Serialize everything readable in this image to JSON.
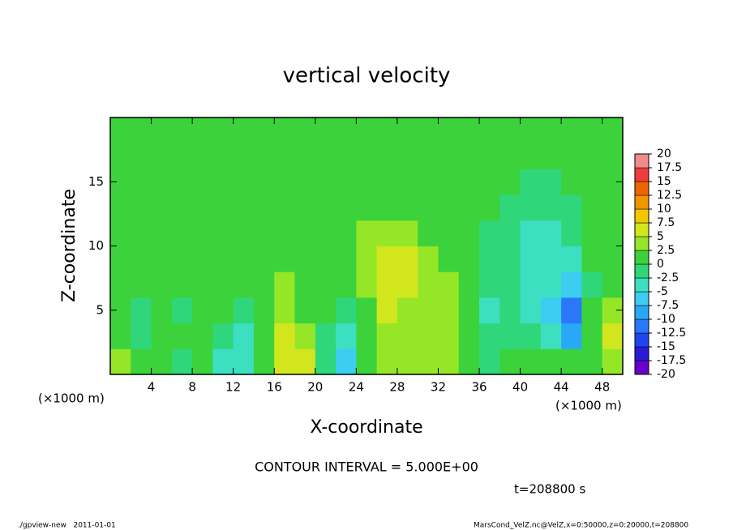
{
  "chart_data": {
    "type": "heatmap",
    "title": "vertical velocity",
    "xlabel": "X-coordinate",
    "ylabel": "Z-coordinate",
    "axis_unit": "(×1000 m)",
    "contour_note": "CONTOUR INTERVAL = 5.000E+00",
    "time_note": "t=208800 s",
    "footer_left": "./gpview-new   2011-01-01",
    "footer_right": "MarsCond_VelZ.nc@VelZ,x=0:50000,z=0:20000,t=208800",
    "xlim": [
      0,
      50
    ],
    "ylim": [
      0,
      20
    ],
    "xticks": [
      4,
      8,
      12,
      16,
      20,
      24,
      28,
      32,
      36,
      40,
      44,
      48
    ],
    "yticks": [
      5,
      10,
      15
    ],
    "x": [
      1,
      3,
      5,
      7,
      9,
      11,
      13,
      15,
      17,
      19,
      21,
      23,
      25,
      27,
      29,
      31,
      33,
      35,
      37,
      39,
      41,
      43,
      45,
      47,
      49
    ],
    "y": [
      1,
      3,
      5,
      7,
      9,
      11,
      13,
      15,
      17,
      19
    ],
    "values": [
      [
        2.5,
        0,
        0,
        -1,
        1,
        -3,
        -4,
        0,
        5,
        5,
        -2,
        -6,
        0,
        2.5,
        2.5,
        2.5,
        2.5,
        1,
        -1,
        0,
        0,
        0,
        0,
        1,
        2.5
      ],
      [
        1,
        -1,
        1,
        0,
        1,
        -2,
        -3,
        1,
        6,
        3,
        -2,
        -5,
        1,
        4,
        3,
        2.5,
        2.5,
        1,
        -2,
        -1,
        -2,
        -4,
        -8,
        1,
        5
      ],
      [
        0,
        -1,
        1.5,
        -1,
        1,
        0,
        -1,
        1,
        2.5,
        2,
        0,
        -1,
        2,
        5,
        4,
        3,
        2.5,
        0,
        -3,
        -2,
        -3,
        -6,
        -11,
        0,
        3
      ],
      [
        0,
        0,
        0,
        0,
        1,
        1,
        0,
        1,
        2.5,
        2,
        1,
        1,
        3,
        7,
        6,
        4,
        2.5,
        0,
        -2,
        -1,
        -3,
        -5,
        -7,
        -1,
        1
      ],
      [
        1,
        0,
        1,
        0,
        1,
        1,
        1,
        1,
        2,
        2,
        1,
        2,
        3,
        5,
        5,
        3,
        2,
        0,
        -1,
        -1,
        -3,
        -5,
        -4,
        0,
        1
      ],
      [
        1,
        1,
        1,
        0,
        1,
        1,
        1,
        1,
        1,
        1.5,
        2,
        2,
        2.5,
        3,
        3,
        2,
        2,
        0,
        -1,
        -1,
        -3,
        -4,
        -2,
        1,
        1
      ],
      [
        1,
        1,
        1,
        0,
        1,
        1,
        1,
        1,
        1,
        1,
        1.5,
        2,
        2,
        2,
        2,
        2,
        1.5,
        0,
        0,
        -1,
        -2,
        -2,
        -1,
        1,
        1
      ],
      [
        1,
        1,
        1,
        1,
        1,
        1,
        1,
        1,
        1,
        1,
        1,
        1,
        1.5,
        1.5,
        1.5,
        2,
        1.5,
        0,
        0,
        0,
        -1,
        -1,
        0,
        1,
        1
      ],
      [
        1,
        1,
        1,
        1,
        1,
        1,
        1,
        1,
        1,
        1,
        1,
        1,
        1,
        1.5,
        1.5,
        1.5,
        1,
        0,
        0,
        0,
        0,
        0,
        1,
        1,
        1
      ],
      [
        1,
        1,
        1,
        1,
        1,
        1,
        1,
        1,
        1,
        1,
        1,
        1,
        1,
        1,
        1,
        1,
        1,
        0,
        0,
        0,
        0,
        0,
        0,
        1,
        1
      ]
    ],
    "colorbar_ticks": [
      -20,
      -17.5,
      -15,
      -12.5,
      -10,
      -7.5,
      -5,
      -2.5,
      0,
      2.5,
      5,
      7.5,
      10,
      12.5,
      15,
      17.5,
      20
    ],
    "colorbar_colors": [
      "#6a00c8",
      "#2a1ad8",
      "#1e46f0",
      "#2a78f8",
      "#2aa8f8",
      "#3ccdf0",
      "#3ce0c0",
      "#30d67a",
      "#3cd23c",
      "#96e628",
      "#d2e61e",
      "#f0c800",
      "#f09600",
      "#f06400",
      "#f03c3c",
      "#f08c8c"
    ]
  }
}
